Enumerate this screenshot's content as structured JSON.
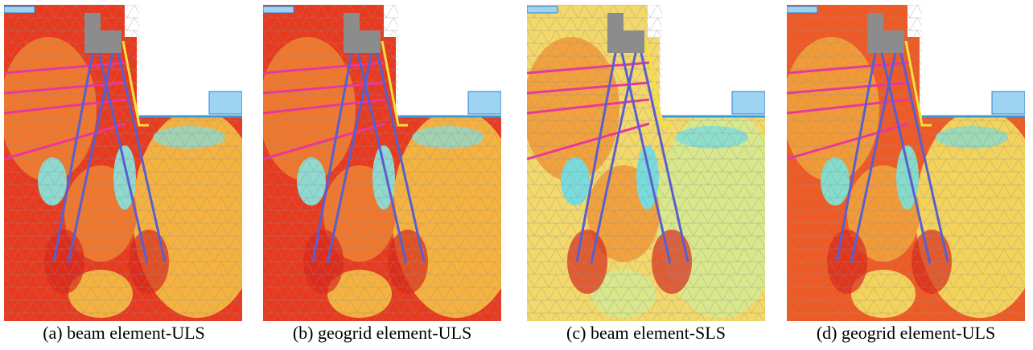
{
  "panels": [
    {
      "caption": "(a) beam element-ULS"
    },
    {
      "caption": "(b) geogrid element-ULS"
    },
    {
      "caption": "(c) beam element-SLS"
    },
    {
      "caption": "(d) geogrid element-ULS"
    }
  ]
}
